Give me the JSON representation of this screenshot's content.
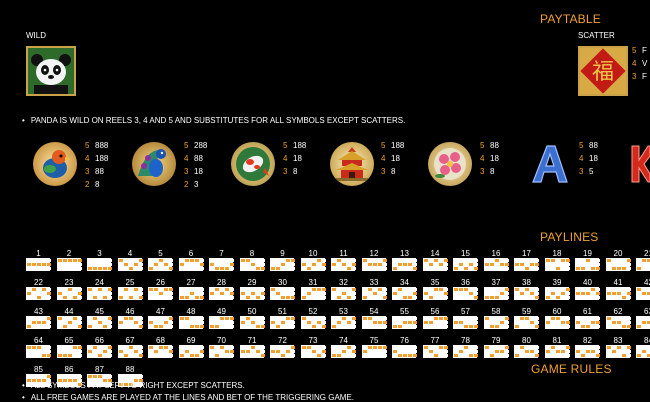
{
  "paytable_title": "PAYTABLE",
  "wild": {
    "label": "WILD"
  },
  "scatter": {
    "label": "SCATTER",
    "pays": [
      {
        "count": "5",
        "value": "F"
      },
      {
        "count": "4",
        "value": "V"
      },
      {
        "count": "3",
        "value": "F"
      }
    ]
  },
  "wild_note": "PANDA IS WILD ON REELS 3, 4 AND 5 AND SUBSTITUTES FOR ALL SYMBOLS EXCEPT SCATTERS.",
  "symbols": [
    {
      "icon": "bird-icon",
      "pays": [
        {
          "count": "5",
          "value": "888"
        },
        {
          "count": "4",
          "value": "188"
        },
        {
          "count": "3",
          "value": "88"
        },
        {
          "count": "2",
          "value": "8"
        }
      ]
    },
    {
      "icon": "peacock-icon",
      "pays": [
        {
          "count": "5",
          "value": "288"
        },
        {
          "count": "4",
          "value": "88"
        },
        {
          "count": "3",
          "value": "18"
        },
        {
          "count": "2",
          "value": "3"
        }
      ]
    },
    {
      "icon": "koi-fish-icon",
      "pays": [
        {
          "count": "5",
          "value": "188"
        },
        {
          "count": "4",
          "value": "18"
        },
        {
          "count": "3",
          "value": "8"
        }
      ]
    },
    {
      "icon": "pagoda-icon",
      "pays": [
        {
          "count": "5",
          "value": "188"
        },
        {
          "count": "4",
          "value": "18"
        },
        {
          "count": "3",
          "value": "8"
        }
      ]
    },
    {
      "icon": "flower-icon",
      "pays": [
        {
          "count": "5",
          "value": "88"
        },
        {
          "count": "4",
          "value": "18"
        },
        {
          "count": "3",
          "value": "8"
        }
      ]
    },
    {
      "icon": "letter-a-icon",
      "pays": [
        {
          "count": "5",
          "value": "88"
        },
        {
          "count": "4",
          "value": "18"
        },
        {
          "count": "3",
          "value": "5"
        }
      ]
    }
  ],
  "paylines_title": "PAYLINES",
  "paylines": [
    [
      1,
      1,
      1,
      1,
      1
    ],
    [
      0,
      0,
      0,
      0,
      0
    ],
    [
      2,
      2,
      2,
      2,
      2
    ],
    [
      0,
      1,
      2,
      1,
      0
    ],
    [
      2,
      1,
      0,
      1,
      2
    ],
    [
      1,
      0,
      0,
      0,
      1
    ],
    [
      1,
      2,
      2,
      2,
      1
    ],
    [
      0,
      0,
      1,
      2,
      2
    ],
    [
      2,
      2,
      1,
      0,
      0
    ],
    [
      1,
      2,
      1,
      0,
      1
    ],
    [
      1,
      0,
      1,
      2,
      1
    ],
    [
      0,
      1,
      1,
      1,
      0
    ],
    [
      2,
      1,
      1,
      1,
      2
    ],
    [
      0,
      1,
      0,
      1,
      0
    ],
    [
      2,
      1,
      2,
      1,
      2
    ],
    [
      1,
      1,
      0,
      1,
      1
    ],
    [
      1,
      1,
      2,
      1,
      1
    ],
    [
      0,
      0,
      2,
      0,
      0
    ],
    [
      2,
      2,
      0,
      2,
      2
    ],
    [
      0,
      2,
      2,
      2,
      0
    ],
    [
      2,
      0,
      0,
      0,
      2
    ],
    [
      1,
      0,
      2,
      0,
      1
    ],
    [
      1,
      2,
      0,
      2,
      1
    ],
    [
      0,
      2,
      0,
      2,
      0
    ],
    [
      2,
      0,
      2,
      0,
      2
    ],
    [
      0,
      0,
      1,
      0,
      0
    ],
    [
      2,
      2,
      1,
      2,
      2
    ],
    [
      1,
      0,
      1,
      0,
      1
    ],
    [
      1,
      2,
      1,
      2,
      1
    ],
    [
      0,
      1,
      2,
      2,
      2
    ],
    [
      2,
      1,
      0,
      0,
      0
    ],
    [
      0,
      2,
      1,
      2,
      0
    ],
    [
      2,
      0,
      1,
      0,
      2
    ],
    [
      1,
      0,
      2,
      2,
      1
    ],
    [
      1,
      2,
      0,
      0,
      1
    ],
    [
      0,
      0,
      0,
      1,
      2
    ],
    [
      2,
      2,
      2,
      1,
      0
    ],
    [
      0,
      1,
      0,
      1,
      2
    ],
    [
      2,
      1,
      2,
      1,
      0
    ],
    [
      1,
      1,
      1,
      0,
      1
    ],
    [
      1,
      1,
      1,
      2,
      1
    ],
    [
      0,
      1,
      1,
      1,
      2
    ],
    [
      2,
      1,
      1,
      1,
      0
    ],
    [
      0,
      2,
      1,
      0,
      2
    ],
    [
      2,
      0,
      1,
      2,
      0
    ],
    [
      1,
      0,
      0,
      1,
      2
    ],
    [
      1,
      2,
      2,
      1,
      0
    ],
    [
      0,
      0,
      2,
      2,
      2
    ],
    [
      2,
      2,
      0,
      0,
      0
    ],
    [
      1,
      0,
      1,
      2,
      2
    ],
    [
      1,
      2,
      1,
      0,
      0
    ],
    [
      0,
      1,
      2,
      1,
      2
    ],
    [
      2,
      1,
      0,
      1,
      0
    ],
    [
      0,
      0,
      1,
      1,
      1
    ],
    [
      2,
      2,
      1,
      1,
      1
    ],
    [
      1,
      1,
      0,
      0,
      0
    ],
    [
      1,
      1,
      2,
      2,
      2
    ],
    [
      0,
      2,
      2,
      1,
      0
    ],
    [
      2,
      0,
      0,
      1,
      2
    ],
    [
      1,
      0,
      0,
      1,
      1
    ],
    [
      1,
      2,
      2,
      1,
      1
    ],
    [
      0,
      1,
      1,
      2,
      2
    ],
    [
      2,
      1,
      1,
      0,
      0
    ],
    [
      0,
      0,
      0,
      2,
      2
    ],
    [
      2,
      2,
      2,
      0,
      0
    ],
    [
      1,
      0,
      2,
      1,
      0
    ],
    [
      1,
      2,
      0,
      1,
      2
    ],
    [
      0,
      1,
      0,
      0,
      1
    ],
    [
      2,
      1,
      2,
      2,
      1
    ],
    [
      0,
      2,
      0,
      1,
      1
    ],
    [
      1,
      1,
      0,
      1,
      2
    ],
    [
      1,
      1,
      2,
      1,
      0
    ],
    [
      0,
      0,
      1,
      2,
      1
    ],
    [
      2,
      2,
      1,
      0,
      1
    ],
    [
      1,
      0,
      0,
      0,
      0
    ],
    [
      1,
      2,
      2,
      2,
      2
    ],
    [
      0,
      1,
      2,
      0,
      0
    ],
    [
      2,
      1,
      0,
      2,
      2
    ],
    [
      0,
      2,
      1,
      1,
      0
    ],
    [
      2,
      0,
      1,
      1,
      2
    ],
    [
      1,
      0,
      1,
      1,
      0
    ],
    [
      1,
      2,
      1,
      1,
      2
    ],
    [
      0,
      1,
      0,
      2,
      0
    ],
    [
      2,
      1,
      2,
      0,
      2
    ],
    [
      1,
      1,
      1,
      1,
      0
    ],
    [
      1,
      1,
      1,
      1,
      2
    ],
    [
      0,
      0,
      0,
      1,
      1
    ],
    [
      2,
      2,
      2,
      1,
      1
    ]
  ],
  "game_rules_title": "GAME RULES",
  "rules": [
    "ALL SYMBOLS PAY LEFT TO RIGHT EXCEPT SCATTERS.",
    "ALL FREE GAMES ARE PLAYED AT THE LINES AND BET OF THE TRIGGERING GAME."
  ]
}
